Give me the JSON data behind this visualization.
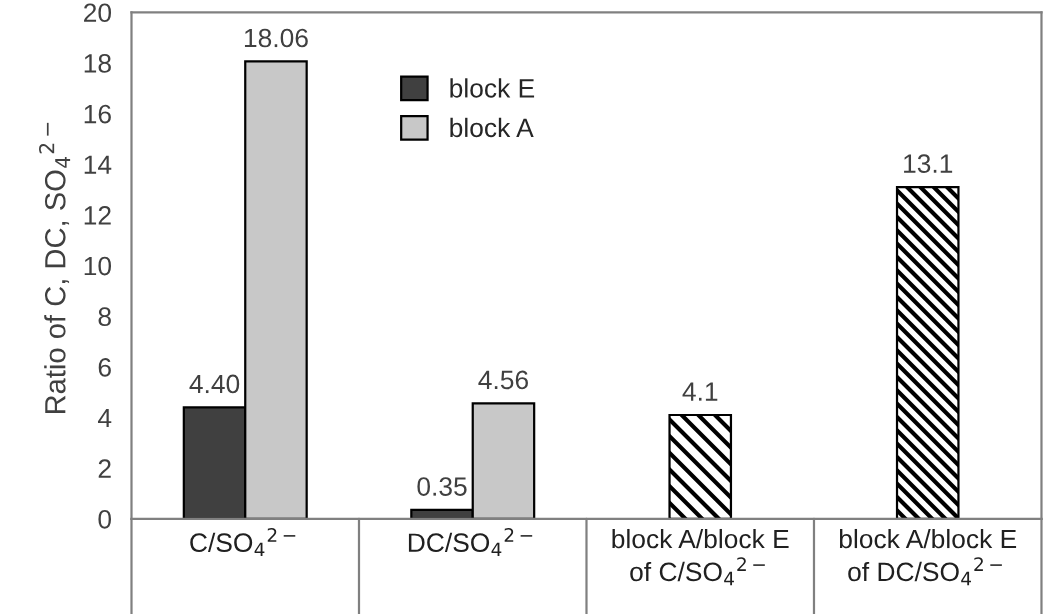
{
  "chart_data": {
    "type": "bar",
    "ylabel": "Ratio of C, DC, SO$_{4}$$^{2−}$",
    "categories": [
      "C/SO$_{4}$$^{2−}$",
      "DC/SO$_{4}$$^{2−}$",
      "block A/block E\nof C/SO$_{4}$$^{2−}$",
      "block A/block E\nof DC/SO$_{4}$$^{2−}$"
    ],
    "series": [
      {
        "name": "block E",
        "color": "#404040",
        "values": [
          4.4,
          0.35,
          null,
          null
        ],
        "value_labels": [
          "4.40",
          "0.35",
          null,
          null
        ]
      },
      {
        "name": "block A",
        "color": "#c8c8c8",
        "values": [
          18.06,
          4.56,
          null,
          null
        ],
        "value_labels": [
          "18.06",
          "4.56",
          null,
          null
        ]
      },
      {
        "color": "#000000",
        "values": [
          null,
          null,
          4.1,
          13.1
        ],
        "value_labels": [
          null,
          null,
          "4.1",
          "13.1"
        ]
      }
    ],
    "ylim": [
      0,
      20
    ],
    "yticks": [
      0,
      2,
      4,
      6,
      8,
      10,
      12,
      14,
      16,
      18,
      20
    ],
    "grid": false,
    "legend": "top"
  }
}
